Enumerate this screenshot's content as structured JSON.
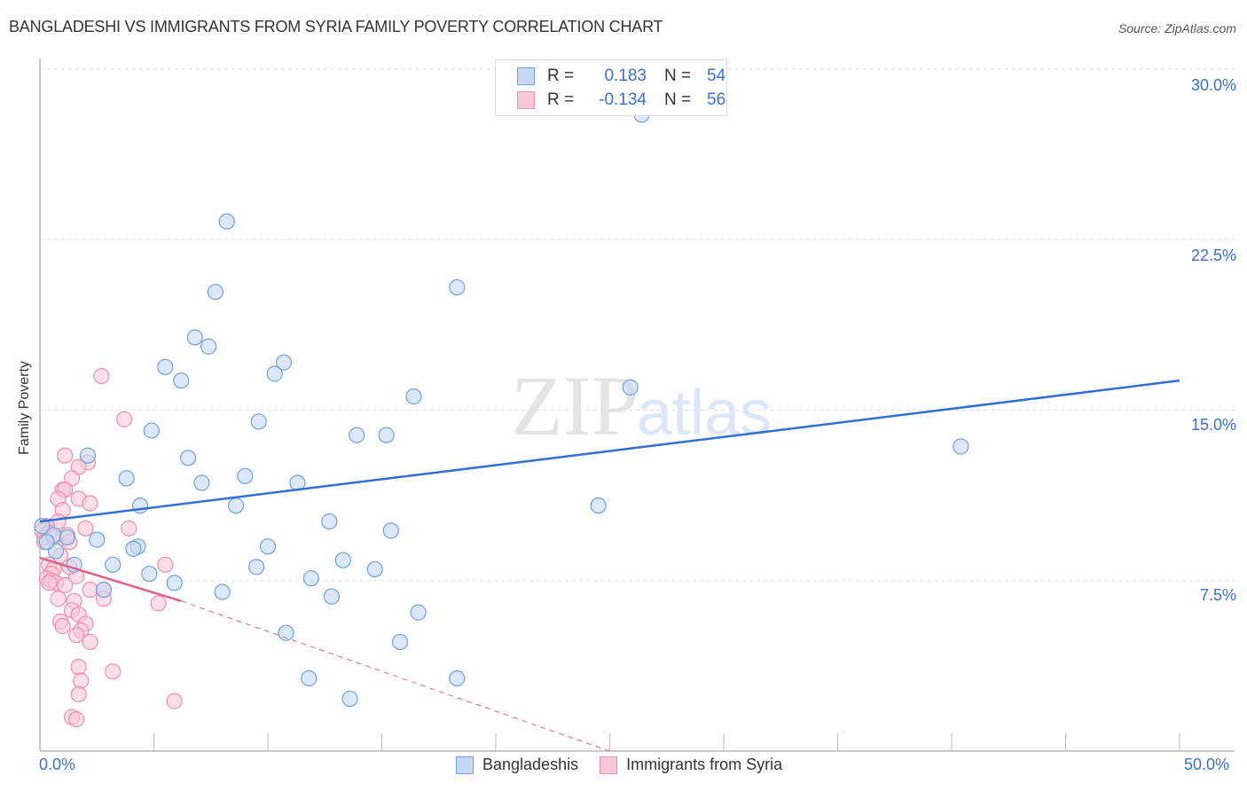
{
  "header": {
    "title": "BANGLADESHI VS IMMIGRANTS FROM SYRIA FAMILY POVERTY CORRELATION CHART",
    "source": "Source: ZipAtlas.com"
  },
  "legend_top": {
    "rows": [
      {
        "r_label": "R =",
        "r_value": "0.183",
        "n_label": "N =",
        "n_value": "54"
      },
      {
        "r_label": "R =",
        "r_value": "-0.134",
        "n_label": "N =",
        "n_value": "56"
      }
    ]
  },
  "legend_bottom": {
    "items": [
      {
        "label": "Bangladeshis"
      },
      {
        "label": "Immigrants from Syria"
      }
    ]
  },
  "axes": {
    "x_min_label": "0.0%",
    "x_max_label": "50.0%",
    "y_label": "Family Poverty",
    "y_ticks": [
      "30.0%",
      "22.5%",
      "15.0%",
      "7.5%"
    ]
  },
  "colors": {
    "blue_fill": "#c5d9f5",
    "blue_stroke": "#6f9fe3",
    "blue_line": "#2f6fd6",
    "pink_fill": "#f9c8d6",
    "pink_stroke": "#ee8fab",
    "pink_line": "#e0608a",
    "tick_text": "#3a6fd8",
    "grid": "#dddddd"
  },
  "chart_data": {
    "type": "scatter",
    "title": "BANGLADESHI VS IMMIGRANTS FROM SYRIA FAMILY POVERTY CORRELATION CHART",
    "xlabel": "",
    "ylabel": "Family Poverty",
    "xlim": [
      0,
      50
    ],
    "ylim": [
      0,
      30
    ],
    "x_ticks": [
      "0.0%",
      "50.0%"
    ],
    "y_ticks": [
      7.5,
      15.0,
      22.5,
      30.0
    ],
    "grid": true,
    "legend_position": "top-center and bottom",
    "series": [
      {
        "name": "Bangladeshis",
        "r": 0.183,
        "n": 54,
        "trend": {
          "x": [
            0,
            50
          ],
          "y": [
            10.1,
            16.3
          ]
        },
        "points": [
          [
            26.4,
            28.0
          ],
          [
            8.2,
            23.3
          ],
          [
            18.3,
            20.4
          ],
          [
            7.7,
            20.2
          ],
          [
            6.8,
            18.2
          ],
          [
            7.4,
            17.8
          ],
          [
            10.7,
            17.1
          ],
          [
            5.5,
            16.9
          ],
          [
            10.3,
            16.6
          ],
          [
            6.2,
            16.3
          ],
          [
            25.9,
            16.0
          ],
          [
            16.4,
            15.6
          ],
          [
            9.6,
            14.5
          ],
          [
            4.9,
            14.1
          ],
          [
            13.9,
            13.9
          ],
          [
            15.2,
            13.9
          ],
          [
            40.4,
            13.4
          ],
          [
            2.1,
            13.0
          ],
          [
            6.5,
            12.9
          ],
          [
            3.8,
            12.0
          ],
          [
            9.0,
            12.1
          ],
          [
            7.1,
            11.8
          ],
          [
            11.3,
            11.8
          ],
          [
            4.4,
            10.8
          ],
          [
            8.6,
            10.8
          ],
          [
            24.5,
            10.8
          ],
          [
            0.1,
            9.9
          ],
          [
            12.7,
            10.1
          ],
          [
            15.4,
            9.7
          ],
          [
            0.6,
            9.5
          ],
          [
            1.2,
            9.4
          ],
          [
            2.5,
            9.3
          ],
          [
            4.3,
            9.0
          ],
          [
            10.0,
            9.0
          ],
          [
            4.1,
            8.9
          ],
          [
            0.7,
            8.8
          ],
          [
            13.3,
            8.4
          ],
          [
            3.2,
            8.2
          ],
          [
            1.5,
            8.2
          ],
          [
            9.5,
            8.1
          ],
          [
            14.7,
            8.0
          ],
          [
            4.8,
            7.8
          ],
          [
            11.9,
            7.6
          ],
          [
            5.9,
            7.4
          ],
          [
            2.8,
            7.1
          ],
          [
            8.0,
            7.0
          ],
          [
            12.8,
            6.8
          ],
          [
            16.6,
            6.1
          ],
          [
            10.8,
            5.2
          ],
          [
            15.8,
            4.8
          ],
          [
            11.8,
            3.2
          ],
          [
            18.3,
            3.2
          ],
          [
            13.6,
            2.3
          ],
          [
            0.3,
            9.2
          ]
        ]
      },
      {
        "name": "Immigrants from Syria",
        "r": -0.134,
        "n": 56,
        "trend": {
          "x": [
            0,
            6.2
          ],
          "y": [
            8.5,
            6.6
          ]
        },
        "trend_dashed": {
          "x": [
            6.2,
            25.0
          ],
          "y": [
            6.6,
            0.0
          ]
        },
        "points": [
          [
            2.7,
            16.5
          ],
          [
            3.7,
            14.6
          ],
          [
            1.1,
            13.0
          ],
          [
            2.1,
            12.7
          ],
          [
            1.7,
            12.5
          ],
          [
            1.4,
            12.0
          ],
          [
            1.0,
            11.5
          ],
          [
            1.1,
            11.5
          ],
          [
            1.7,
            11.1
          ],
          [
            0.8,
            11.1
          ],
          [
            2.2,
            10.9
          ],
          [
            1.0,
            10.6
          ],
          [
            0.8,
            10.1
          ],
          [
            0.3,
            9.9
          ],
          [
            0.1,
            9.7
          ],
          [
            0.4,
            9.6
          ],
          [
            3.9,
            9.8
          ],
          [
            2.0,
            9.8
          ],
          [
            1.2,
            9.5
          ],
          [
            0.2,
            9.4
          ],
          [
            0.6,
            9.4
          ],
          [
            1.3,
            9.2
          ],
          [
            5.5,
            8.2
          ],
          [
            0.4,
            8.2
          ],
          [
            0.6,
            8.0
          ],
          [
            0.5,
            7.8
          ],
          [
            0.3,
            7.6
          ],
          [
            0.5,
            7.5
          ],
          [
            1.6,
            7.7
          ],
          [
            0.7,
            7.4
          ],
          [
            0.4,
            7.4
          ],
          [
            1.1,
            7.3
          ],
          [
            2.2,
            7.1
          ],
          [
            2.8,
            7.1
          ],
          [
            0.8,
            6.7
          ],
          [
            2.8,
            6.7
          ],
          [
            1.5,
            6.6
          ],
          [
            5.2,
            6.5
          ],
          [
            1.4,
            6.2
          ],
          [
            1.7,
            6.0
          ],
          [
            0.9,
            5.7
          ],
          [
            1.0,
            5.5
          ],
          [
            2.0,
            5.6
          ],
          [
            1.8,
            5.3
          ],
          [
            1.6,
            5.1
          ],
          [
            2.2,
            4.8
          ],
          [
            1.7,
            3.7
          ],
          [
            3.2,
            3.5
          ],
          [
            1.8,
            3.1
          ],
          [
            1.7,
            2.5
          ],
          [
            5.9,
            2.2
          ],
          [
            1.4,
            1.5
          ],
          [
            1.6,
            1.4
          ],
          [
            0.9,
            8.6
          ],
          [
            0.2,
            9.2
          ],
          [
            1.3,
            8.1
          ]
        ]
      }
    ]
  }
}
